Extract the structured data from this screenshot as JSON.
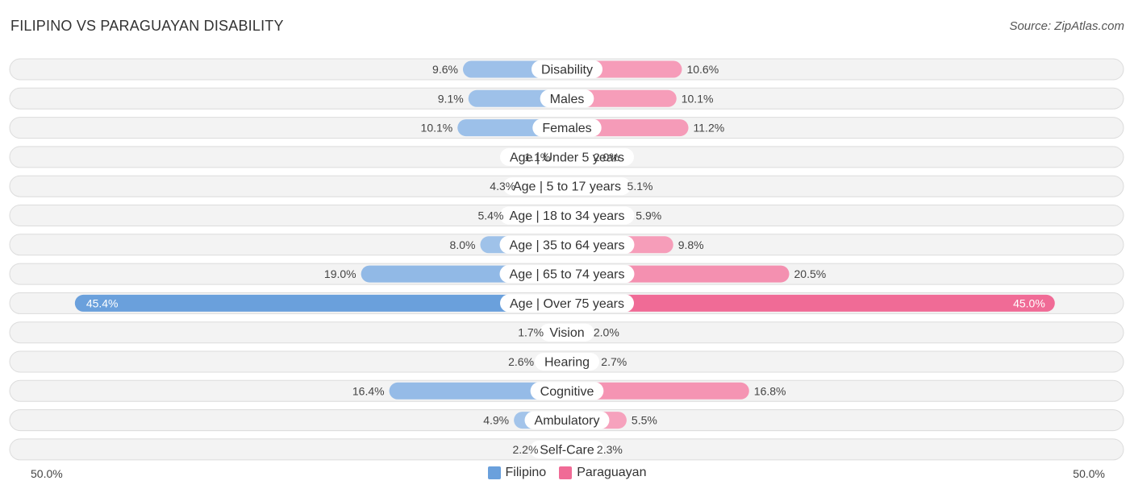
{
  "header": {
    "title": "FILIPINO VS PARAGUAYAN DISABILITY",
    "source": "Source: ZipAtlas.com"
  },
  "axis": {
    "left_label": "50.0%",
    "right_label": "50.0%"
  },
  "legend": {
    "items": [
      {
        "name": "Filipino",
        "color": "#6aa0dc"
      },
      {
        "name": "Paraguayan",
        "color": "#f06b96"
      }
    ]
  },
  "chart_data": {
    "type": "bar",
    "orientation": "horizontal-diverging",
    "title": "FILIPINO VS PARAGUAYAN DISABILITY",
    "xlim": [
      0,
      50
    ],
    "categories": [
      "Disability",
      "Males",
      "Females",
      "Age | Under 5 years",
      "Age | 5 to 17 years",
      "Age | 18 to 34 years",
      "Age | 35 to 64 years",
      "Age | 65 to 74 years",
      "Age | Over 75 years",
      "Vision",
      "Hearing",
      "Cognitive",
      "Ambulatory",
      "Self-Care"
    ],
    "series": [
      {
        "name": "Filipino",
        "color": "#6aa0dc",
        "values": [
          9.6,
          9.1,
          10.1,
          1.1,
          4.3,
          5.4,
          8.0,
          19.0,
          45.4,
          1.7,
          2.6,
          16.4,
          4.9,
          2.2
        ],
        "labels": [
          "9.6%",
          "9.1%",
          "10.1%",
          "1.1%",
          "4.3%",
          "5.4%",
          "8.0%",
          "19.0%",
          "45.4%",
          "1.7%",
          "2.6%",
          "16.4%",
          "4.9%",
          "2.2%"
        ]
      },
      {
        "name": "Paraguayan",
        "color": "#f06b96",
        "values": [
          10.6,
          10.1,
          11.2,
          2.0,
          5.1,
          5.9,
          9.8,
          20.5,
          45.0,
          2.0,
          2.7,
          16.8,
          5.5,
          2.3
        ],
        "labels": [
          "10.6%",
          "10.1%",
          "11.2%",
          "2.0%",
          "5.1%",
          "5.9%",
          "9.8%",
          "20.5%",
          "45.0%",
          "2.0%",
          "2.7%",
          "16.8%",
          "5.5%",
          "2.3%"
        ]
      }
    ]
  }
}
